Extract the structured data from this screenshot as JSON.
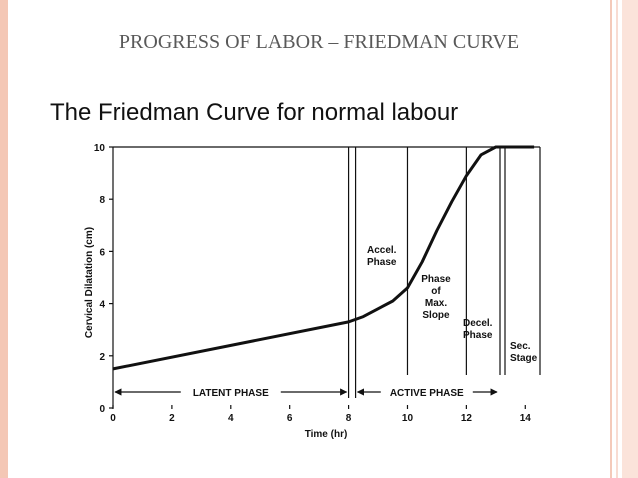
{
  "title": "PROGRESS OF LABOR – FRIEDMAN CURVE",
  "chart_data": {
    "type": "line",
    "title": "The Friedman Curve for normal labour",
    "x_label": "Time (hr)",
    "y_label": "Cervical Dilatation (cm)",
    "x": [
      0,
      8,
      8.5,
      9,
      9.5,
      10,
      10.5,
      11,
      11.5,
      12,
      12.5,
      13,
      14.3
    ],
    "values": [
      1.5,
      3.3,
      3.5,
      3.8,
      4.1,
      4.6,
      5.6,
      6.8,
      7.9,
      8.9,
      9.7,
      10,
      10
    ],
    "color": "#111111",
    "xlim": [
      0,
      14.5
    ],
    "xticks": [
      0,
      2,
      4,
      6,
      8,
      10,
      12,
      14
    ],
    "ylim": [
      0,
      10
    ],
    "yticks": [
      0,
      2,
      4,
      6,
      8,
      10
    ],
    "annotations": [
      {
        "lines": [
          "Accel.",
          "Phase"
        ]
      },
      {
        "lines": [
          "Phase",
          "of",
          "Max.",
          "Slope"
        ]
      },
      {
        "lines": [
          "Decel.",
          "Phase"
        ]
      },
      {
        "lines": [
          "Sec.",
          "Stage"
        ]
      }
    ],
    "phase_labels": [
      "LATENT PHASE",
      "ACTIVE PHASE"
    ]
  }
}
